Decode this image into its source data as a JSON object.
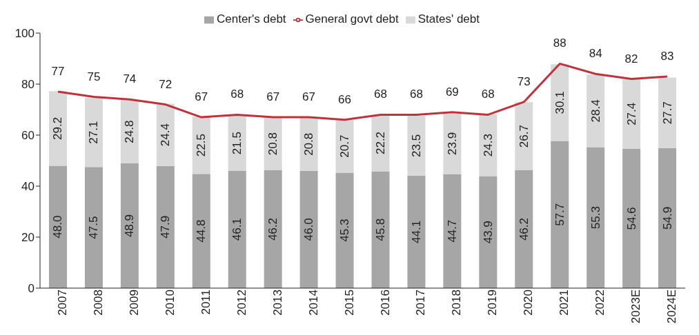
{
  "chart_data": {
    "type": "bar",
    "stacked": true,
    "categories": [
      "2007",
      "2008",
      "2009",
      "2010",
      "2011",
      "2012",
      "2013",
      "2014",
      "2015",
      "2016",
      "2017",
      "2018",
      "2019",
      "2020",
      "2021",
      "2022",
      "2023E",
      "2024E"
    ],
    "series": [
      {
        "name": "Center's debt",
        "color": "#a6a6a6",
        "values": [
          48.0,
          47.5,
          48.9,
          47.9,
          44.8,
          46.1,
          46.2,
          46.0,
          45.3,
          45.8,
          44.1,
          44.7,
          43.9,
          46.2,
          57.7,
          55.3,
          54.6,
          54.9
        ],
        "value_labels": [
          "48.0",
          "47.5",
          "48.9",
          "47.9",
          "44.8",
          "46.1",
          "46.2",
          "46.0",
          "45.3",
          "45.8",
          "44.1",
          "44.7",
          "43.9",
          "46.2",
          "57.7",
          "55.3",
          "54.6",
          "54.9"
        ]
      },
      {
        "name": "States' debt",
        "color": "#d9d9d9",
        "values": [
          29.2,
          27.1,
          24.8,
          24.4,
          22.5,
          21.5,
          20.8,
          20.8,
          20.7,
          22.2,
          23.5,
          23.9,
          24.3,
          26.7,
          30.1,
          28.4,
          27.4,
          27.7
        ],
        "value_labels": [
          "29.2",
          "27.1",
          "24.8",
          "24.4",
          "22.5",
          "21.5",
          "20.8",
          "20.8",
          "20.7",
          "22.2",
          "23.5",
          "23.9",
          "24.3",
          "26.7",
          "30.1",
          "28.4",
          "27.4",
          "27.7"
        ]
      },
      {
        "name": "General govt debt",
        "type": "line",
        "color": "#c0313a",
        "values": [
          77,
          75,
          74,
          72,
          67,
          68,
          67,
          67,
          66,
          68,
          68,
          69,
          68,
          73,
          88,
          84,
          82,
          83
        ],
        "value_labels": [
          "77",
          "75",
          "74",
          "72",
          "67",
          "68",
          "67",
          "67",
          "66",
          "68",
          "68",
          "69",
          "68",
          "73",
          "88",
          "84",
          "82",
          "83"
        ]
      }
    ],
    "ylim": [
      0,
      100
    ],
    "yticks": [
      0,
      20,
      40,
      60,
      80,
      100
    ],
    "grid": false,
    "legend": "top",
    "marker": "none",
    "line_style": "solid"
  }
}
